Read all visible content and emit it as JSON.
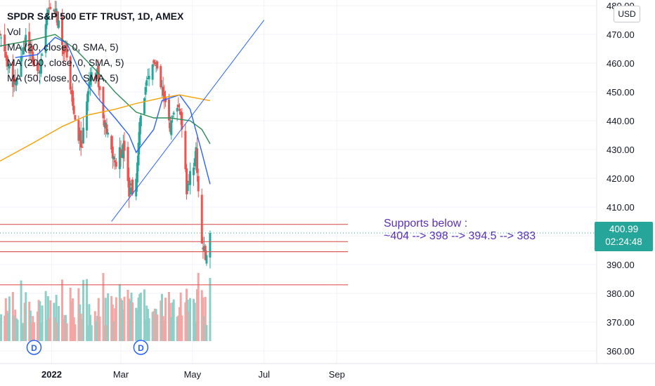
{
  "legend": {
    "title": "SPDR S&P 500 ETF TRUST, 1D, AMEX",
    "lines": [
      "Vol",
      "MA (20, close, 0, SMA, 5)",
      "MA (200, close, 0, SMA, 5)",
      "MA (50, close, 0, SMA, 5)"
    ]
  },
  "currency_button": "USD",
  "annotation": {
    "line1": "Supports below :",
    "line2": "~404 --> 398 --> 394.5 --> 383"
  },
  "price_badge": {
    "price": "400.99",
    "countdown": "02:24:48"
  },
  "colors": {
    "up": "#26a69a",
    "down": "#ef5350",
    "vol_up": "#8ed0c8",
    "vol_down": "#f4a6a4",
    "ma20": "#2962ff",
    "ma50": "#2e8b57",
    "ma200": "#f5a000",
    "support": "#e05a5a",
    "trendline": "#2962ff",
    "annotation": "#5b2fb8"
  },
  "chart_data": {
    "type": "candlestick",
    "price_axis": {
      "ticks": [
        360,
        370,
        380,
        390,
        400,
        410,
        420,
        430,
        440,
        450,
        460,
        470,
        480
      ],
      "tick_labels": [
        "360.00",
        "370.00",
        "380.00",
        "390.00",
        "400.00",
        "410.00",
        "420.00",
        "430.00",
        "440.00",
        "450.00",
        "460.00",
        "470.00",
        "480.00"
      ]
    },
    "time_axis": {
      "labels": [
        "2022",
        "Mar",
        "May",
        "Jul",
        "Sep"
      ],
      "start_date": "2021-11-18",
      "end_date": "2022-09-30"
    },
    "ohlc_anchor_closes": [
      [
        "2021-11-18",
        469
      ],
      [
        "2021-11-26",
        458
      ],
      [
        "2021-12-01",
        451
      ],
      [
        "2021-12-10",
        470
      ],
      [
        "2021-12-20",
        455
      ],
      [
        "2021-12-29",
        477
      ],
      [
        "2022-01-04",
        479
      ],
      [
        "2022-01-10",
        466
      ],
      [
        "2022-01-14",
        464
      ],
      [
        "2022-01-21",
        438
      ],
      [
        "2022-01-27",
        431
      ],
      [
        "2022-02-02",
        456
      ],
      [
        "2022-02-09",
        457
      ],
      [
        "2022-02-14",
        440
      ],
      [
        "2022-02-24",
        425
      ],
      [
        "2022-03-04",
        432
      ],
      [
        "2022-03-08",
        416
      ],
      [
        "2022-03-14",
        418
      ],
      [
        "2022-03-18",
        444
      ],
      [
        "2022-03-29",
        461
      ],
      [
        "2022-04-05",
        450
      ],
      [
        "2022-04-12",
        438
      ],
      [
        "2022-04-20",
        445
      ],
      [
        "2022-04-26",
        416
      ],
      [
        "2022-05-04",
        429
      ],
      [
        "2022-05-09",
        398
      ],
      [
        "2022-05-12",
        392
      ],
      [
        "2022-05-16",
        400.99
      ]
    ],
    "moving_averages": [
      {
        "name": "MA 20",
        "period": 20,
        "points": [
          [
            "2021-12-01",
            462
          ],
          [
            "2021-12-20",
            463
          ],
          [
            "2022-01-04",
            469
          ],
          [
            "2022-01-14",
            467
          ],
          [
            "2022-01-27",
            455
          ],
          [
            "2022-02-09",
            448
          ],
          [
            "2022-02-24",
            441
          ],
          [
            "2022-03-08",
            435
          ],
          [
            "2022-03-14",
            429
          ],
          [
            "2022-03-29",
            437
          ],
          [
            "2022-04-05",
            447
          ],
          [
            "2022-04-20",
            449
          ],
          [
            "2022-04-29",
            444
          ],
          [
            "2022-05-09",
            429
          ],
          [
            "2022-05-16",
            418
          ]
        ]
      },
      {
        "name": "MA 50",
        "period": 50,
        "points": [
          [
            "2021-11-18",
            466
          ],
          [
            "2021-12-15",
            468
          ],
          [
            "2022-01-04",
            470
          ],
          [
            "2022-01-21",
            465
          ],
          [
            "2022-02-09",
            457
          ],
          [
            "2022-02-24",
            450
          ],
          [
            "2022-03-14",
            443
          ],
          [
            "2022-03-29",
            441
          ],
          [
            "2022-04-12",
            441
          ],
          [
            "2022-04-29",
            440
          ],
          [
            "2022-05-09",
            437
          ],
          [
            "2022-05-16",
            432
          ]
        ]
      },
      {
        "name": "MA 200",
        "period": 200,
        "points": [
          [
            "2021-11-18",
            426
          ],
          [
            "2021-12-15",
            432
          ],
          [
            "2022-01-10",
            438
          ],
          [
            "2022-02-01",
            442
          ],
          [
            "2022-02-24",
            444
          ],
          [
            "2022-03-14",
            446
          ],
          [
            "2022-04-05",
            448
          ],
          [
            "2022-04-20",
            449
          ],
          [
            "2022-05-16",
            447
          ]
        ]
      }
    ],
    "trendline": {
      "from": [
        "2022-02-21",
        405
      ],
      "to": [
        "2022-07-01",
        475
      ]
    },
    "support_levels": [
      404,
      398,
      394.5,
      383
    ],
    "current_price": 400.99,
    "current_price_label": "400.99",
    "dividend_markers": [
      "2021-12-17",
      "2022-03-18"
    ],
    "volume_pane": true
  }
}
